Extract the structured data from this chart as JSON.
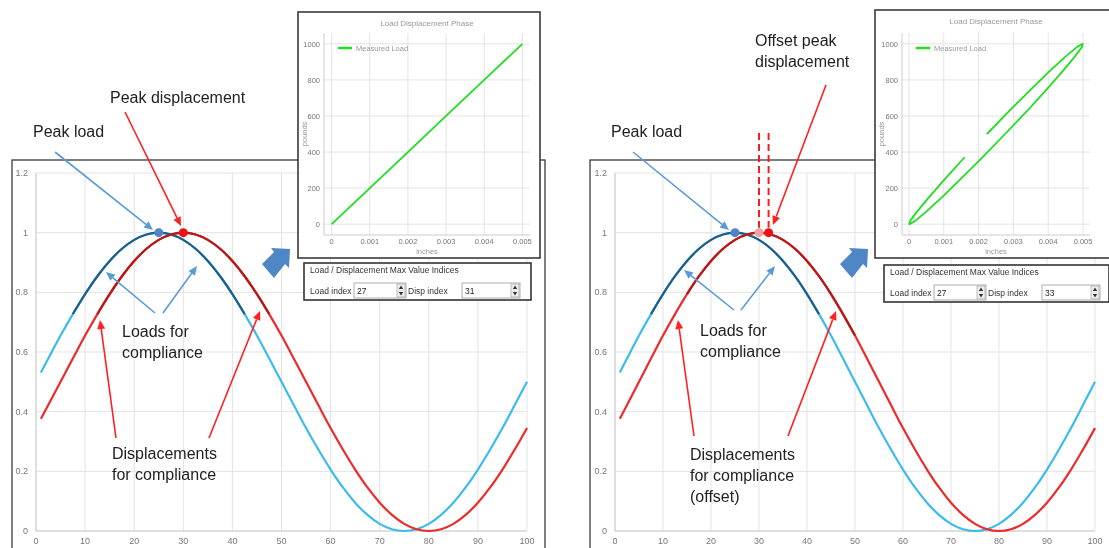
{
  "chart_data": [
    {
      "type": "line",
      "xlim": [
        0,
        100
      ],
      "xticks": [
        0,
        10,
        20,
        30,
        40,
        50,
        60,
        70,
        80,
        90,
        100
      ],
      "ylim": [
        0,
        1.2
      ],
      "yticks": [
        0,
        0.2,
        0.4,
        0.6,
        0.8,
        1,
        1.2
      ],
      "grid": true,
      "series": [
        {
          "color": "#3dbbec",
          "x": [
            1,
            2.5,
            5,
            7.5,
            10,
            12.5,
            15,
            17.5,
            20,
            22.5,
            25,
            27.5,
            30,
            32.5,
            35,
            37.5,
            40,
            42.5,
            45,
            47.5,
            50,
            52.5,
            55,
            57.5,
            60,
            62.5,
            65,
            67.5,
            70,
            72.5,
            75,
            77.5,
            80,
            82.5,
            85,
            87.5,
            90,
            92.5,
            95,
            97.5,
            100
          ],
          "values": [
            0.531,
            0.578,
            0.655,
            0.727,
            0.794,
            0.854,
            0.905,
            0.946,
            0.976,
            0.994,
            1,
            0.994,
            0.976,
            0.946,
            0.905,
            0.854,
            0.794,
            0.727,
            0.655,
            0.578,
            0.5,
            0.422,
            0.345,
            0.273,
            0.206,
            0.146,
            0.095,
            0.054,
            0.024,
            0.006,
            0,
            0.006,
            0.024,
            0.054,
            0.095,
            0.146,
            0.206,
            0.273,
            0.345,
            0.422,
            0.5
          ]
        },
        {
          "color": "#ee2a2a",
          "x": [
            1,
            2.5,
            5,
            7.5,
            10,
            12.5,
            15,
            17.5,
            20,
            22.5,
            25,
            27.5,
            30,
            32.5,
            35,
            37.5,
            40,
            42.5,
            45,
            47.5,
            50,
            52.5,
            55,
            57.5,
            60,
            62.5,
            65,
            67.5,
            70,
            72.5,
            75,
            77.5,
            80,
            82.5,
            85,
            87.5,
            90,
            92.5,
            95,
            97.5,
            100
          ],
          "values": [
            0.376,
            0.422,
            0.5,
            0.578,
            0.655,
            0.727,
            0.794,
            0.854,
            0.905,
            0.946,
            0.976,
            0.994,
            1,
            0.994,
            0.976,
            0.946,
            0.905,
            0.854,
            0.794,
            0.727,
            0.655,
            0.578,
            0.5,
            0.422,
            0.345,
            0.273,
            0.206,
            0.146,
            0.095,
            0.054,
            0.024,
            0.006,
            0,
            0.006,
            0.024,
            0.054,
            0.095,
            0.146,
            0.206,
            0.273,
            0.345
          ]
        },
        {
          "color": "#1f5d8c",
          "x": [
            7.5,
            10,
            12.5,
            15,
            17.5,
            20,
            22.5,
            25,
            27.5,
            30,
            32.5,
            35,
            37.5,
            40,
            42.5
          ],
          "values": [
            0.727,
            0.794,
            0.854,
            0.905,
            0.946,
            0.976,
            0.994,
            1,
            0.994,
            0.976,
            0.946,
            0.905,
            0.854,
            0.794,
            0.727
          ]
        },
        {
          "color": "#b51a1a",
          "x": [
            12.5,
            15,
            17.5,
            20,
            22.5,
            25,
            27.5,
            30,
            32.5,
            35,
            37.5,
            40,
            42.5,
            45,
            47.5
          ],
          "values": [
            0.727,
            0.794,
            0.854,
            0.905,
            0.946,
            0.976,
            0.994,
            1,
            0.994,
            0.976,
            0.946,
            0.905,
            0.854,
            0.794,
            0.727
          ]
        },
        {
          "type": "scatter",
          "marker": "circle",
          "color": "#4a86c8",
          "x": [
            25
          ],
          "values": [
            1
          ]
        },
        {
          "type": "scatter",
          "marker": "circle",
          "color": "#ee1111",
          "x": [
            30
          ],
          "values": [
            1
          ]
        }
      ],
      "annotations": [
        "Peak load",
        "Peak displacement",
        "Loads for\ncompliance",
        "Displacements\nfor compliance"
      ]
    },
    {
      "type": "line",
      "title": "Load Displacement Phase",
      "xlabel": "inches",
      "ylabel": "pounds",
      "xlim": [
        -0.0002,
        0.0052
      ],
      "xticks": [
        0,
        0.001,
        0.002,
        0.003,
        0.004,
        0.005
      ],
      "ylim": [
        -60,
        1060
      ],
      "yticks": [
        0,
        200,
        400,
        600,
        800,
        1000
      ],
      "grid": true,
      "legend": "top left",
      "series": [
        {
          "name": "Measured Load",
          "color": "#22dd22",
          "x": [
            0,
            0.001,
            0.002,
            0.003,
            0.004,
            0.005
          ],
          "values": [
            0,
            200,
            400,
            600,
            800,
            1000
          ]
        }
      ],
      "annotations": [
        "Load / Displacement Max Value Indices",
        "Load index",
        "27",
        "Disp index",
        "31"
      ]
    },
    {
      "type": "line",
      "xlim": [
        0,
        100
      ],
      "xticks": [
        0,
        10,
        20,
        30,
        40,
        50,
        60,
        70,
        80,
        90,
        100
      ],
      "ylim": [
        0,
        1.2
      ],
      "yticks": [
        0,
        0.2,
        0.4,
        0.6,
        0.8,
        1,
        1.2
      ],
      "grid": true,
      "series": [
        {
          "color": "#3dbbec",
          "x": [
            1,
            2.5,
            5,
            7.5,
            10,
            12.5,
            15,
            17.5,
            20,
            22.5,
            25,
            27.5,
            30,
            32.5,
            35,
            37.5,
            40,
            42.5,
            45,
            47.5,
            50,
            52.5,
            55,
            57.5,
            60,
            62.5,
            65,
            67.5,
            70,
            72.5,
            75,
            77.5,
            80,
            82.5,
            85,
            87.5,
            90,
            92.5,
            95,
            97.5,
            100
          ],
          "values": [
            0.531,
            0.578,
            0.655,
            0.727,
            0.794,
            0.854,
            0.905,
            0.946,
            0.976,
            0.994,
            1,
            0.994,
            0.976,
            0.946,
            0.905,
            0.854,
            0.794,
            0.727,
            0.655,
            0.578,
            0.5,
            0.422,
            0.345,
            0.273,
            0.206,
            0.146,
            0.095,
            0.054,
            0.024,
            0.006,
            0,
            0.006,
            0.024,
            0.054,
            0.095,
            0.146,
            0.206,
            0.273,
            0.345,
            0.422,
            0.5
          ]
        },
        {
          "color": "#ee2a2a",
          "x": [
            1,
            2.5,
            5,
            7.5,
            10,
            12.5,
            15,
            17.5,
            20,
            22.5,
            25,
            27.5,
            30,
            32.5,
            35,
            37.5,
            40,
            42.5,
            45,
            47.5,
            50,
            52.5,
            55,
            57.5,
            60,
            62.5,
            65,
            67.5,
            70,
            72.5,
            75,
            77.5,
            80,
            82.5,
            85,
            87.5,
            90,
            92.5,
            95,
            97.5,
            100
          ],
          "values": [
            0.376,
            0.422,
            0.5,
            0.578,
            0.655,
            0.727,
            0.794,
            0.854,
            0.905,
            0.946,
            0.976,
            0.994,
            1,
            0.994,
            0.976,
            0.946,
            0.905,
            0.854,
            0.794,
            0.727,
            0.655,
            0.578,
            0.5,
            0.422,
            0.345,
            0.273,
            0.206,
            0.146,
            0.095,
            0.054,
            0.024,
            0.006,
            0,
            0.006,
            0.024,
            0.054,
            0.095,
            0.146,
            0.206,
            0.273,
            0.345
          ]
        },
        {
          "color": "#1f5d8c",
          "x": [
            7.5,
            10,
            12.5,
            15,
            17.5,
            20,
            22.5,
            25,
            27.5,
            30,
            32.5,
            35,
            37.5,
            40,
            42.5
          ],
          "values": [
            0.727,
            0.794,
            0.854,
            0.905,
            0.946,
            0.976,
            0.994,
            1,
            0.994,
            0.976,
            0.946,
            0.905,
            0.854,
            0.794,
            0.727
          ]
        },
        {
          "color": "#b51a1a",
          "x": [
            15,
            17.5,
            20,
            22.5,
            25,
            27.5,
            30,
            32.5,
            35,
            37.5,
            40,
            42.5,
            45,
            47.5,
            50
          ],
          "values": [
            0.794,
            0.854,
            0.905,
            0.946,
            0.976,
            0.994,
            1,
            0.994,
            0.976,
            0.946,
            0.905,
            0.854,
            0.794,
            0.727,
            0.655
          ]
        },
        {
          "type": "scatter",
          "marker": "circle",
          "color": "#4a86c8",
          "x": [
            25
          ],
          "values": [
            1
          ]
        },
        {
          "type": "scatter",
          "marker": "circle",
          "color": "#f4a0a0",
          "x": [
            30
          ],
          "values": [
            1
          ]
        },
        {
          "type": "scatter",
          "marker": "circle",
          "color": "#ee1111",
          "x": [
            32
          ],
          "values": [
            1
          ]
        }
      ],
      "ref_lines": [
        {
          "axis": "x",
          "value": 30,
          "color": "#ee2222",
          "line_style": "dashed"
        },
        {
          "axis": "x",
          "value": 32,
          "color": "#ee2222",
          "line_style": "dashed"
        }
      ],
      "annotations": [
        "Peak load",
        "Offset peak\ndisplacement",
        "Loads for\ncompliance",
        "Displacements\nfor compliance\n(offset)"
      ]
    },
    {
      "type": "line",
      "title": "Load Displacement Phase",
      "xlabel": "inches",
      "ylabel": "pounds",
      "xlim": [
        -0.0002,
        0.0052
      ],
      "xticks": [
        0,
        0.001,
        0.002,
        0.003,
        0.004,
        0.005
      ],
      "ylim": [
        -60,
        1060
      ],
      "yticks": [
        0,
        200,
        400,
        600,
        800,
        1000
      ],
      "grid": true,
      "legend": "top left",
      "series": [
        {
          "name": "Measured Load",
          "color": "#22dd22",
          "x": [
            0.00224,
            0.00289,
            0.00352,
            0.00407,
            0.00452,
            0.00483,
            0.00499,
            0.00497,
            0.00478,
            0.00444,
            0.00397,
            0.0034,
            0.00276,
            0.00211,
            0.00148,
            0.00093,
            0.00048,
            0.00017,
            1e-05,
            3e-05,
            0.00022,
            0.00056,
            0.00103,
            0.0016
          ],
          "values": [
            500,
            629,
            750,
            854,
            933,
            983,
            1000,
            983,
            933,
            854,
            750,
            629,
            500,
            371,
            250,
            146,
            67,
            17,
            0,
            17,
            67,
            146,
            250,
            371
          ]
        }
      ],
      "annotations": [
        "Load / Displacement Max Value Indices",
        "Load index",
        "27",
        "Disp index",
        "33"
      ]
    }
  ]
}
